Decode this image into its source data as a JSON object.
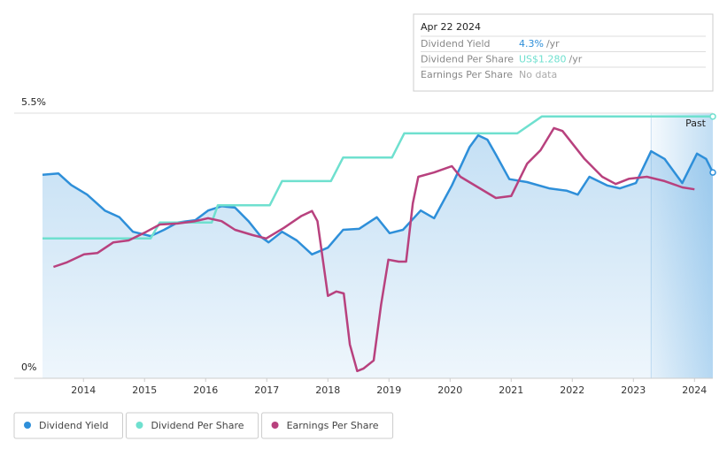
{
  "chart_data": {
    "type": "line",
    "tooltip": {
      "date": "Apr 22 2024",
      "rows": [
        {
          "label": "Dividend Yield",
          "value": "4.3%",
          "unit": "/yr",
          "color": "#2e8fd9"
        },
        {
          "label": "Dividend Per Share",
          "value": "US$1.280",
          "unit": "/yr",
          "color": "#6fe0cf"
        },
        {
          "label": "Earnings Per Share",
          "value": "No data",
          "color": "#aaaaaa"
        }
      ]
    },
    "past_label": "Past",
    "past_start": 2023.29,
    "xlim": [
      2013.33,
      2024.3
    ],
    "xticks": [
      2014,
      2015,
      2016,
      2017,
      2018,
      2019,
      2020,
      2021,
      2022,
      2023,
      2024
    ],
    "ylim": [
      0,
      5.5
    ],
    "yticks": [
      {
        "value": 0,
        "label": "0%"
      },
      {
        "value": 5.5,
        "label": "5.5%"
      }
    ],
    "series": [
      {
        "name": "Dividend Yield",
        "color": "#2e8fd9",
        "area": true,
        "x": [
          2013.33,
          2013.59,
          2013.8,
          2014.06,
          2014.35,
          2014.59,
          2014.81,
          2015.1,
          2015.32,
          2015.54,
          2015.83,
          2016.04,
          2016.26,
          2016.48,
          2016.7,
          2016.91,
          2017.03,
          2017.25,
          2017.49,
          2017.74,
          2018.0,
          2018.25,
          2018.51,
          2018.8,
          2019.01,
          2019.23,
          2019.52,
          2019.74,
          2020.03,
          2020.32,
          2020.46,
          2020.61,
          2020.75,
          2020.97,
          2021.26,
          2021.62,
          2021.91,
          2022.09,
          2022.28,
          2022.57,
          2022.78,
          2023.04,
          2023.29,
          2023.51,
          2023.8,
          2024.04,
          2024.19,
          2024.3
        ],
        "values": [
          4.22,
          4.25,
          4.01,
          3.81,
          3.48,
          3.34,
          3.04,
          2.95,
          3.08,
          3.23,
          3.28,
          3.48,
          3.57,
          3.54,
          3.26,
          2.93,
          2.82,
          3.04,
          2.86,
          2.57,
          2.71,
          3.08,
          3.1,
          3.34,
          3.01,
          3.08,
          3.48,
          3.32,
          4.0,
          4.8,
          5.04,
          4.95,
          4.64,
          4.13,
          4.07,
          3.94,
          3.89,
          3.81,
          4.18,
          4.0,
          3.94,
          4.05,
          4.71,
          4.55,
          4.05,
          4.66,
          4.55,
          4.27
        ]
      },
      {
        "name": "Dividend Per Share",
        "color": "#6fe0cf",
        "x": [
          2013.33,
          2015.1,
          2015.25,
          2016.1,
          2016.2,
          2017.05,
          2017.25,
          2018.05,
          2018.25,
          2019.05,
          2019.25,
          2021.1,
          2021.5,
          2024.3
        ],
        "values": [
          2.9,
          2.9,
          3.23,
          3.23,
          3.59,
          3.59,
          4.09,
          4.09,
          4.58,
          4.58,
          5.08,
          5.08,
          5.43,
          5.43
        ]
      },
      {
        "name": "Earnings Per Share",
        "color": "#b8417e",
        "x": [
          2013.51,
          2013.72,
          2014.01,
          2014.23,
          2014.49,
          2014.74,
          2015.03,
          2015.25,
          2015.54,
          2015.83,
          2016.04,
          2016.26,
          2016.48,
          2016.77,
          2016.99,
          2017.28,
          2017.57,
          2017.74,
          2017.83,
          2018.0,
          2018.14,
          2018.26,
          2018.36,
          2018.48,
          2018.58,
          2018.75,
          2018.87,
          2018.99,
          2019.16,
          2019.28,
          2019.39,
          2019.48,
          2019.74,
          2020.03,
          2020.17,
          2020.46,
          2020.75,
          2021.0,
          2021.26,
          2021.48,
          2021.7,
          2021.84,
          2022.2,
          2022.49,
          2022.71,
          2022.93,
          2023.22,
          2023.51,
          2023.8,
          2024.0
        ],
        "values": [
          2.31,
          2.4,
          2.57,
          2.6,
          2.82,
          2.86,
          3.04,
          3.19,
          3.21,
          3.26,
          3.32,
          3.26,
          3.08,
          2.97,
          2.9,
          3.12,
          3.37,
          3.47,
          3.26,
          1.71,
          1.8,
          1.76,
          0.7,
          0.15,
          0.2,
          0.37,
          1.52,
          2.46,
          2.42,
          2.42,
          3.63,
          4.18,
          4.27,
          4.4,
          4.18,
          3.96,
          3.74,
          3.78,
          4.45,
          4.73,
          5.19,
          5.13,
          4.55,
          4.18,
          4.03,
          4.14,
          4.18,
          4.09,
          3.96,
          3.92
        ]
      }
    ]
  }
}
